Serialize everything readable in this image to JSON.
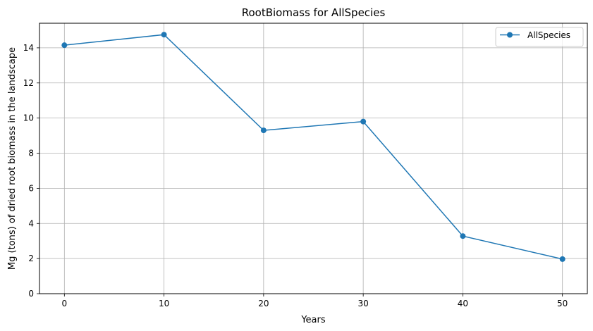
{
  "chart_data": {
    "type": "line",
    "title": "RootBiomass for AllSpecies",
    "xlabel": "Years",
    "ylabel": "Mg (tons) of dried root biomass in the landscape",
    "xlim": [
      -2.5,
      52.5
    ],
    "ylim": [
      0,
      15.4
    ],
    "xticks": [
      0,
      10,
      20,
      30,
      40,
      50
    ],
    "yticks": [
      0,
      2,
      4,
      6,
      8,
      10,
      12,
      14
    ],
    "grid": true,
    "legend": "top-right",
    "colors": {
      "series": "#1f77b4",
      "grid": "#b0b0b0"
    },
    "series": [
      {
        "name": "AllSpecies",
        "x": [
          0,
          10,
          20,
          30,
          40,
          50
        ],
        "y": [
          14.15,
          14.75,
          9.3,
          9.8,
          3.28,
          1.97
        ],
        "marker": "circle"
      }
    ]
  }
}
